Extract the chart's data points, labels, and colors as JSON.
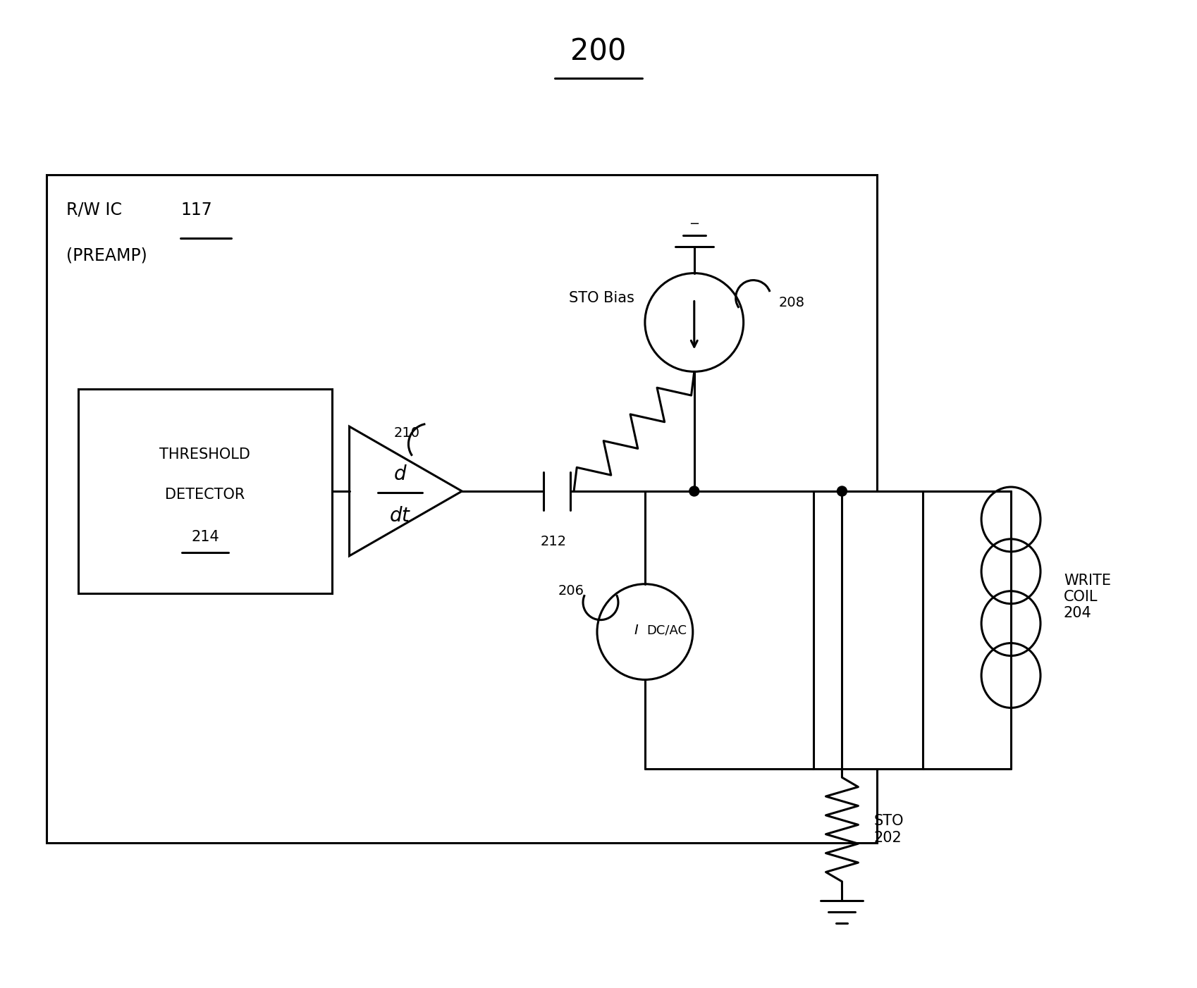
{
  "fig_width": 16.98,
  "fig_height": 14.02,
  "bg_color": "#ffffff",
  "lc": "#000000",
  "lw": 2.2,
  "title": "200",
  "rw_ic": "R/W IC ",
  "rw_117": "117",
  "preamp": "(PREAMP)",
  "thresh1": "THRESHOLD",
  "thresh2": "DETECTOR",
  "thresh3": "214",
  "sto_bias_label": "STO Bias",
  "label_208": "208",
  "label_210": "210",
  "label_212": "212",
  "label_206": "206",
  "dcac_i": "I",
  "dcac_label": "DC/AC",
  "write_coil": "WRITE\nCOIL\n204",
  "sto_label": "STO\n202"
}
